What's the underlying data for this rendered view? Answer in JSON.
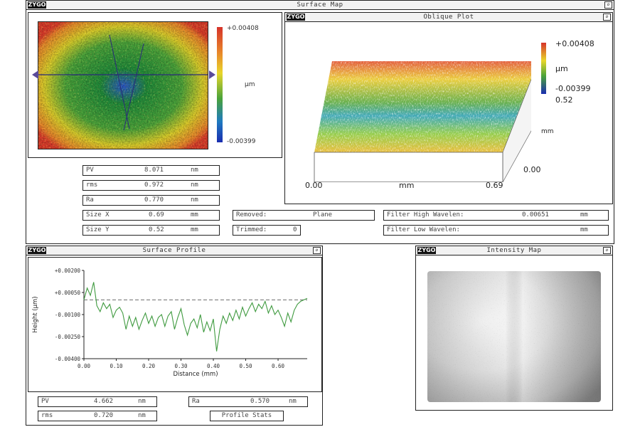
{
  "app": {
    "logo_text": "ZYGO"
  },
  "surface_map": {
    "title": "Surface Map",
    "colorbar": {
      "max": "+0.00408",
      "unit": "µm",
      "min": "-0.00399"
    },
    "stats": [
      {
        "label": "PV",
        "value": "8.071",
        "unit": "nm"
      },
      {
        "label": "rms",
        "value": "0.972",
        "unit": "nm"
      },
      {
        "label": "Ra",
        "value": "0.770",
        "unit": "nm"
      },
      {
        "label": "Size X",
        "value": "0.69",
        "unit": "mm"
      },
      {
        "label": "Size Y",
        "value": "0.52",
        "unit": "mm"
      }
    ],
    "removed": {
      "label": "Removed:",
      "value": "Plane"
    },
    "trimmed": {
      "label": "Trimmed:",
      "value": "0"
    },
    "filter_high": {
      "label": "Filter High Wavelen:",
      "value": "0.00651",
      "unit": "mm"
    },
    "filter_low": {
      "label": "Filter Low  Wavelen:",
      "value": "",
      "unit": "mm"
    }
  },
  "oblique_plot": {
    "title": "Oblique Plot",
    "z_max": "+0.00408",
    "z_unit": "µm",
    "z_min": "-0.00399",
    "y_max": "0.52",
    "y_unit": "mm",
    "y_min": "0.00",
    "x_min": "0.00",
    "x_unit": "mm",
    "x_max": "0.69"
  },
  "surface_profile": {
    "title": "Surface Profile",
    "stats": [
      {
        "label": "PV",
        "value": "4.662",
        "unit": "nm"
      },
      {
        "label": "rms",
        "value": "0.720",
        "unit": "nm"
      },
      {
        "label": "Ra",
        "value": "0.570",
        "unit": "nm"
      }
    ],
    "button_label": "Profile Stats"
  },
  "intensity_map": {
    "title": "Intensity Map"
  },
  "chart_data": {
    "type": "line",
    "xlabel": "Distance (mm)",
    "ylabel": "Height (µm)",
    "xlim": [
      0,
      0.69
    ],
    "ylim": [
      -0.004,
      0.002
    ],
    "x_ticks": [
      "0.00",
      "0.10",
      "0.20",
      "0.30",
      "0.40",
      "0.50",
      "0.60"
    ],
    "x_tick_values": [
      0,
      0.1,
      0.2,
      0.3,
      0.4,
      0.5,
      0.6
    ],
    "y_ticks": [
      "+0.00200",
      "+0.00050",
      "-0.00100",
      "-0.00250",
      "-0.00400"
    ],
    "y_tick_values": [
      0.002,
      0.0005,
      -0.001,
      -0.0025,
      -0.004
    ],
    "reference_line": 0.0,
    "grid": false,
    "series": [
      {
        "values": [
          [
            0.0,
            0.0
          ],
          [
            0.01,
            0.0008
          ],
          [
            0.02,
            0.0003
          ],
          [
            0.03,
            0.0012
          ],
          [
            0.04,
            -0.0004
          ],
          [
            0.05,
            -0.0008
          ],
          [
            0.06,
            -0.0002
          ],
          [
            0.07,
            -0.0006
          ],
          [
            0.08,
            -0.0003
          ],
          [
            0.09,
            -0.0012
          ],
          [
            0.1,
            -0.0007
          ],
          [
            0.11,
            -0.0005
          ],
          [
            0.12,
            -0.0009
          ],
          [
            0.13,
            -0.002
          ],
          [
            0.14,
            -0.0011
          ],
          [
            0.15,
            -0.0018
          ],
          [
            0.16,
            -0.0012
          ],
          [
            0.17,
            -0.002
          ],
          [
            0.18,
            -0.0014
          ],
          [
            0.19,
            -0.0009
          ],
          [
            0.2,
            -0.0016
          ],
          [
            0.21,
            -0.0011
          ],
          [
            0.22,
            -0.0018
          ],
          [
            0.23,
            -0.0012
          ],
          [
            0.24,
            -0.001
          ],
          [
            0.25,
            -0.0018
          ],
          [
            0.26,
            -0.0011
          ],
          [
            0.27,
            -0.0008
          ],
          [
            0.28,
            -0.002
          ],
          [
            0.29,
            -0.0012
          ],
          [
            0.3,
            -0.0006
          ],
          [
            0.31,
            -0.0017
          ],
          [
            0.32,
            -0.0024
          ],
          [
            0.33,
            -0.0016
          ],
          [
            0.34,
            -0.0013
          ],
          [
            0.35,
            -0.0019
          ],
          [
            0.36,
            -0.001
          ],
          [
            0.37,
            -0.0022
          ],
          [
            0.38,
            -0.0015
          ],
          [
            0.39,
            -0.0021
          ],
          [
            0.4,
            -0.0013
          ],
          [
            0.41,
            -0.0035
          ],
          [
            0.42,
            -0.002
          ],
          [
            0.43,
            -0.0011
          ],
          [
            0.44,
            -0.0016
          ],
          [
            0.45,
            -0.0009
          ],
          [
            0.46,
            -0.0014
          ],
          [
            0.47,
            -0.0007
          ],
          [
            0.48,
            -0.0013
          ],
          [
            0.49,
            -0.0005
          ],
          [
            0.5,
            -0.0011
          ],
          [
            0.51,
            -0.0006
          ],
          [
            0.52,
            -0.0002
          ],
          [
            0.53,
            -0.0008
          ],
          [
            0.54,
            -0.0003
          ],
          [
            0.55,
            -0.0006
          ],
          [
            0.56,
            -0.0001
          ],
          [
            0.57,
            -0.0009
          ],
          [
            0.58,
            -0.0004
          ],
          [
            0.59,
            -0.001
          ],
          [
            0.6,
            -0.0007
          ],
          [
            0.61,
            -0.0012
          ],
          [
            0.62,
            -0.0018
          ],
          [
            0.63,
            -0.0009
          ],
          [
            0.64,
            -0.0015
          ],
          [
            0.65,
            -0.0007
          ],
          [
            0.66,
            -0.0003
          ],
          [
            0.67,
            -0.0001
          ],
          [
            0.68,
            0.0
          ],
          [
            0.69,
            0.0001
          ]
        ]
      }
    ]
  },
  "colors": {
    "profile_line": "#3f9a3f",
    "frame": "#222222",
    "title_bg": "#f2f2f2"
  }
}
